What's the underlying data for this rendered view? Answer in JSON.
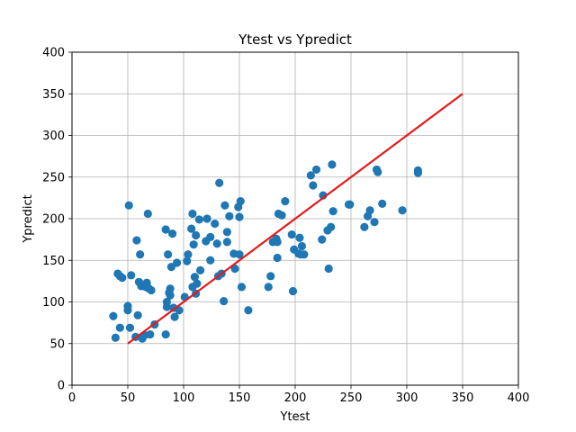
{
  "chart_data": {
    "type": "scatter",
    "title": "Ytest vs Ypredict",
    "xlabel": "Ytest",
    "ylabel": "Ypredict",
    "xlim": [
      0,
      400
    ],
    "ylim": [
      0,
      400
    ],
    "xticks": [
      0,
      50,
      100,
      150,
      200,
      250,
      300,
      350,
      400
    ],
    "yticks": [
      0,
      50,
      100,
      150,
      200,
      250,
      300,
      350,
      400
    ],
    "grid": true,
    "colors": {
      "points": "#1f77b4",
      "line": "#e41a1c"
    },
    "series": [
      {
        "type": "scatter",
        "points": [
          [
            37,
            83
          ],
          [
            39,
            57
          ],
          [
            41,
            134
          ],
          [
            43,
            131
          ],
          [
            43,
            69
          ],
          [
            45,
            129
          ],
          [
            50,
            95
          ],
          [
            50,
            90
          ],
          [
            51,
            216
          ],
          [
            52,
            69
          ],
          [
            53,
            132
          ],
          [
            57,
            58
          ],
          [
            58,
            174
          ],
          [
            59,
            84
          ],
          [
            60,
            124
          ],
          [
            61,
            157
          ],
          [
            62,
            119
          ],
          [
            63,
            56
          ],
          [
            65,
            60
          ],
          [
            66,
            118
          ],
          [
            67,
            123
          ],
          [
            68,
            206
          ],
          [
            69,
            116
          ],
          [
            70,
            61
          ],
          [
            71,
            114
          ],
          [
            74,
            73
          ],
          [
            84,
            187
          ],
          [
            84,
            61
          ],
          [
            85,
            100
          ],
          [
            85,
            94
          ],
          [
            86,
            157
          ],
          [
            87,
            111
          ],
          [
            88,
            116
          ],
          [
            88,
            108
          ],
          [
            89,
            142
          ],
          [
            90,
            182
          ],
          [
            91,
            93
          ],
          [
            92,
            82
          ],
          [
            94,
            147
          ],
          [
            96,
            90
          ],
          [
            101,
            106
          ],
          [
            103,
            149
          ],
          [
            104,
            157
          ],
          [
            107,
            188
          ],
          [
            108,
            118
          ],
          [
            108,
            206
          ],
          [
            109,
            169
          ],
          [
            110,
            130
          ],
          [
            111,
            180
          ],
          [
            111,
            110
          ],
          [
            112,
            122
          ],
          [
            114,
            199
          ],
          [
            115,
            138
          ],
          [
            120,
            173
          ],
          [
            121,
            200
          ],
          [
            124,
            178
          ],
          [
            124,
            150
          ],
          [
            128,
            194
          ],
          [
            130,
            170
          ],
          [
            131,
            131
          ],
          [
            132,
            243
          ],
          [
            134,
            134
          ],
          [
            136,
            101
          ],
          [
            137,
            216
          ],
          [
            139,
            184
          ],
          [
            139,
            172
          ],
          [
            141,
            203
          ],
          [
            145,
            158
          ],
          [
            146,
            140
          ],
          [
            149,
            214
          ],
          [
            150,
            202
          ],
          [
            150,
            157
          ],
          [
            151,
            221
          ],
          [
            152,
            118
          ],
          [
            158,
            90
          ],
          [
            176,
            118
          ],
          [
            178,
            131
          ],
          [
            180,
            172
          ],
          [
            183,
            176
          ],
          [
            184,
            172
          ],
          [
            184,
            153
          ],
          [
            185,
            206
          ],
          [
            188,
            204
          ],
          [
            191,
            221
          ],
          [
            197,
            181
          ],
          [
            198,
            113
          ],
          [
            199,
            163
          ],
          [
            203,
            158
          ],
          [
            204,
            177
          ],
          [
            205,
            157
          ],
          [
            206,
            167
          ],
          [
            208,
            157
          ],
          [
            214,
            252
          ],
          [
            216,
            240
          ],
          [
            219,
            259
          ],
          [
            224,
            175
          ],
          [
            225,
            228
          ],
          [
            229,
            186
          ],
          [
            230,
            140
          ],
          [
            232,
            190
          ],
          [
            233,
            265
          ],
          [
            234,
            209
          ],
          [
            248,
            217
          ],
          [
            249,
            217
          ],
          [
            262,
            190
          ],
          [
            265,
            203
          ],
          [
            267,
            210
          ],
          [
            271,
            196
          ],
          [
            273,
            259
          ],
          [
            274,
            256
          ],
          [
            278,
            218
          ],
          [
            296,
            210
          ],
          [
            310,
            258
          ],
          [
            310,
            255
          ]
        ]
      },
      {
        "type": "line",
        "points": [
          [
            50,
            50
          ],
          [
            350,
            350
          ]
        ]
      }
    ]
  }
}
